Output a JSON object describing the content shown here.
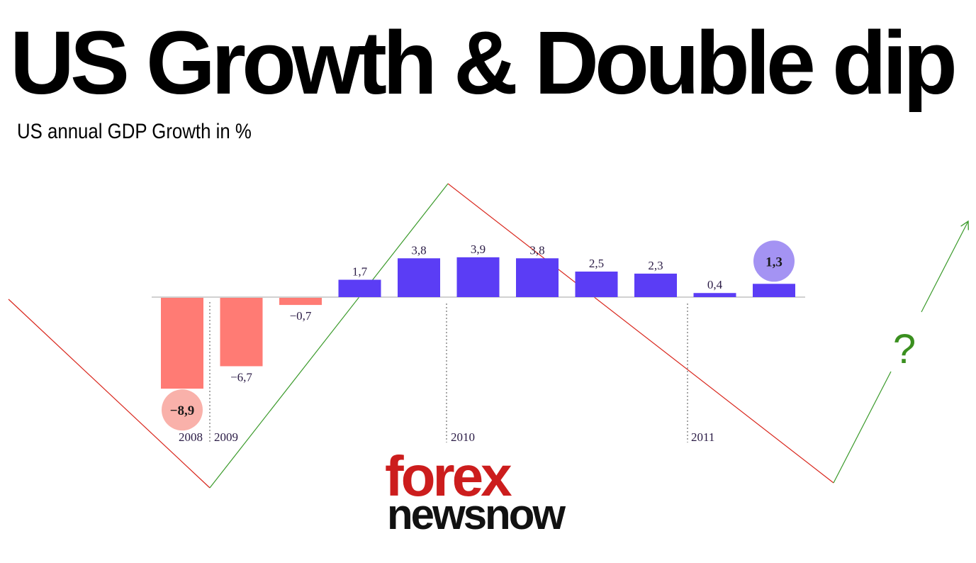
{
  "header": {
    "title": "US Growth & Double dip",
    "subtitle": "US annual GDP Growth in %"
  },
  "logo": {
    "line1": "forex",
    "line2": "newsnow"
  },
  "question_mark": "?",
  "colors": {
    "negative": "#ff7b74",
    "positive": "#5b3df5",
    "highlight_negative": "#f9b1aa",
    "highlight_positive": "#a493f3",
    "label": "#2a1b45",
    "trend_up": "#3a9a2a",
    "trend_down": "#d9261c",
    "question": "#3a8f1f",
    "logo_red": "#cc1d1d",
    "logo_black": "#111111"
  },
  "chart_data": {
    "type": "bar",
    "title": "US Growth & Double dip",
    "subtitle": "US annual GDP Growth in %",
    "values": [
      -8.9,
      -6.7,
      -0.7,
      1.7,
      3.8,
      3.9,
      3.8,
      2.5,
      2.3,
      0.4,
      1.3
    ],
    "value_labels": [
      "−8,9",
      "−6,7",
      "−0,7",
      "1,7",
      "3,8",
      "3,9",
      "3,8",
      "2,5",
      "2,3",
      "0,4",
      "1,3"
    ],
    "highlighted": [
      0,
      10
    ],
    "year_markers": [
      {
        "label": "2008",
        "before_bar": 1
      },
      {
        "label": "2009",
        "before_bar": 1
      },
      {
        "label": "2010",
        "before_bar": 5
      },
      {
        "label": "2011",
        "before_bar": 9
      }
    ],
    "grid": false,
    "legend": "none"
  }
}
